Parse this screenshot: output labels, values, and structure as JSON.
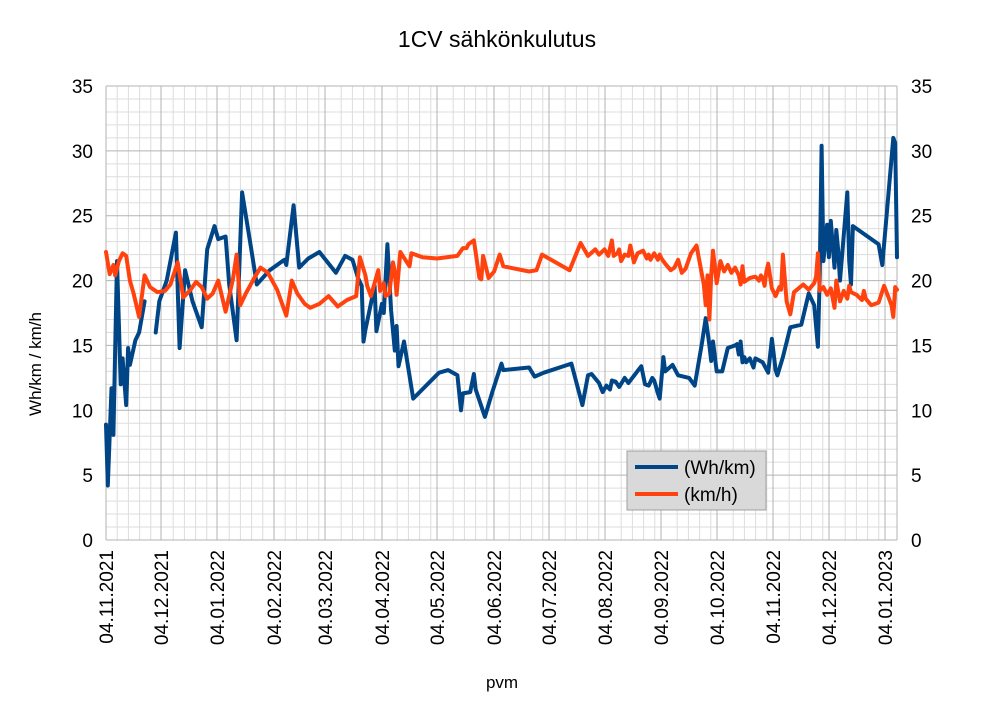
{
  "chart_data": {
    "type": "line",
    "title": "1CV sähkönkulutus",
    "xlabel": "pvm",
    "ylabel": "Wh/km / km/h",
    "ylim": [
      0,
      35
    ],
    "y_ticks": [
      "0",
      "5",
      "10",
      "15",
      "20",
      "25",
      "30",
      "35"
    ],
    "x_ticks": [
      "04.11.2021",
      "04.12.2021",
      "04.01.2022",
      "04.02.2022",
      "04.03.2022",
      "04.04.2022",
      "04.05.2022",
      "04.06.2022",
      "04.07.2022",
      "04.08.2022",
      "04.09.2022",
      "04.10.2022",
      "04.11.2022",
      "04.12.2022",
      "04.01.2023"
    ],
    "x_range_days": [
      0,
      430
    ],
    "legend_position": "right-middle",
    "series": [
      {
        "name": "(Wh/km)",
        "color": "#004586",
        "points": [
          [
            0,
            8.9
          ],
          [
            1,
            4.2
          ],
          [
            3,
            11.7
          ],
          [
            4,
            8.1
          ],
          [
            6,
            21.5
          ],
          [
            8,
            12.0
          ],
          [
            9,
            14.0
          ],
          [
            11,
            10.4
          ],
          [
            12,
            14.8
          ],
          [
            13,
            13.5
          ],
          [
            16,
            15.4
          ],
          [
            18,
            16.0
          ],
          [
            21,
            18.4
          ],
          null,
          [
            27,
            16.0
          ],
          [
            29,
            18.4
          ],
          [
            33,
            20.0
          ],
          [
            38,
            23.7
          ],
          [
            40,
            14.8
          ],
          [
            43,
            20.8
          ],
          [
            47,
            18.4
          ],
          [
            52,
            16.4
          ],
          [
            55,
            22.4
          ],
          [
            59,
            24.2
          ],
          [
            61,
            23.2
          ],
          [
            65,
            23.4
          ],
          [
            67,
            19.7
          ],
          [
            71,
            15.4
          ],
          [
            74,
            26.8
          ],
          [
            79,
            22.4
          ],
          [
            82,
            19.7
          ],
          [
            89,
            20.8
          ],
          [
            97,
            21.6
          ],
          [
            98,
            21.2
          ],
          [
            102,
            25.8
          ],
          [
            105,
            21.0
          ],
          [
            110,
            21.7
          ],
          [
            116,
            22.2
          ],
          [
            125,
            20.6
          ],
          [
            130,
            21.9
          ],
          [
            134,
            21.6
          ],
          [
            137,
            20.2
          ],
          [
            139,
            19.6
          ],
          [
            140,
            15.3
          ],
          [
            141,
            16.2
          ],
          [
            146,
            19.6
          ],
          [
            147,
            16.1
          ],
          [
            150,
            18.2
          ],
          [
            151,
            17.5
          ],
          [
            153,
            22.8
          ],
          [
            155,
            17.7
          ],
          [
            157,
            14.6
          ],
          [
            158,
            16.5
          ],
          [
            159,
            13.4
          ],
          [
            162,
            15.3
          ],
          [
            167,
            10.9
          ],
          [
            181,
            12.9
          ],
          [
            186,
            13.1
          ],
          [
            191,
            12.7
          ],
          [
            193,
            10.0
          ],
          [
            194,
            11.3
          ],
          [
            198,
            11.4
          ],
          [
            200,
            12.8
          ],
          [
            201,
            11.6
          ],
          [
            206,
            9.5
          ],
          [
            210,
            11.4
          ],
          [
            215,
            13.6
          ],
          [
            216,
            13.1
          ],
          [
            230,
            13.3
          ],
          [
            233,
            12.6
          ],
          [
            238,
            12.9
          ],
          [
            253,
            13.6
          ],
          [
            259,
            10.4
          ],
          [
            262,
            12.7
          ],
          [
            264,
            12.8
          ],
          [
            268,
            12.1
          ],
          [
            270,
            11.4
          ],
          [
            272,
            11.9
          ],
          [
            274,
            11.6
          ],
          [
            275,
            12.3
          ],
          [
            277,
            12.2
          ],
          [
            279,
            11.8
          ],
          [
            282,
            12.5
          ],
          [
            284,
            12.1
          ],
          [
            291,
            13.4
          ],
          [
            293,
            12.0
          ],
          [
            295,
            11.9
          ],
          [
            297,
            12.5
          ],
          [
            298,
            12.3
          ],
          [
            300,
            11.3
          ],
          [
            301,
            10.9
          ],
          [
            303,
            14.1
          ],
          [
            304,
            13.0
          ],
          [
            308,
            13.5
          ],
          [
            311,
            12.7
          ],
          [
            317,
            12.5
          ],
          [
            320,
            11.9
          ],
          [
            324,
            15.2
          ],
          [
            326,
            17.1
          ],
          [
            328,
            15.0
          ],
          [
            329,
            13.8
          ],
          [
            330,
            15.3
          ],
          [
            332,
            13.0
          ],
          [
            335,
            13.0
          ],
          [
            338,
            14.8
          ],
          [
            342,
            15.0
          ],
          [
            343,
            15.1
          ],
          [
            344,
            14.3
          ],
          [
            345,
            15.3
          ],
          [
            346,
            13.7
          ],
          [
            347,
            14.1
          ],
          [
            348,
            13.7
          ],
          [
            350,
            14.0
          ],
          [
            352,
            13.3
          ],
          [
            353,
            14.0
          ],
          [
            357,
            13.7
          ],
          [
            360,
            12.9
          ],
          [
            362,
            15.5
          ],
          [
            364,
            13.1
          ],
          [
            365,
            12.7
          ],
          [
            368,
            14.1
          ],
          [
            372,
            16.4
          ],
          [
            378,
            16.6
          ],
          [
            382,
            19.0
          ],
          [
            385,
            18.1
          ],
          [
            387,
            14.9
          ],
          [
            388,
            20.3
          ],
          [
            389,
            30.4
          ],
          [
            390,
            21.5
          ],
          [
            392,
            24.3
          ],
          [
            393,
            21.8
          ],
          [
            394,
            24.6
          ],
          [
            396,
            21.0
          ],
          [
            397,
            23.9
          ],
          [
            398,
            22.4
          ],
          [
            399,
            20.0
          ],
          [
            403,
            26.8
          ],
          [
            404,
            21.5
          ],
          [
            405,
            19.7
          ],
          [
            406,
            24.2
          ],
          [
            420,
            22.8
          ],
          [
            422,
            21.2
          ],
          [
            428,
            31.0
          ],
          [
            429,
            30.6
          ],
          [
            430,
            21.8
          ]
        ]
      },
      {
        "name": "(km/h)",
        "color": "#ff420e",
        "points": [
          [
            0,
            22.2
          ],
          [
            2,
            20.5
          ],
          [
            4,
            21.2
          ],
          [
            5,
            20.4
          ],
          [
            7,
            21.5
          ],
          [
            9,
            22.1
          ],
          [
            11,
            21.9
          ],
          [
            13,
            20.0
          ],
          [
            15,
            19.0
          ],
          [
            18,
            17.2
          ],
          [
            21,
            20.4
          ],
          [
            24,
            19.5
          ],
          [
            28,
            19.1
          ],
          [
            32,
            19.2
          ],
          [
            35,
            19.7
          ],
          [
            39,
            21.4
          ],
          [
            42,
            18.7
          ],
          [
            46,
            19.3
          ],
          [
            49,
            19.9
          ],
          [
            52,
            19.5
          ],
          [
            55,
            18.6
          ],
          [
            58,
            19.0
          ],
          [
            61,
            20.0
          ],
          [
            65,
            17.6
          ],
          [
            69,
            20.1
          ],
          [
            71,
            22.0
          ],
          [
            73,
            18.1
          ],
          [
            76,
            19.0
          ],
          [
            81,
            20.3
          ],
          [
            84,
            21.0
          ],
          [
            88,
            20.6
          ],
          [
            93,
            19.3
          ],
          [
            96,
            18.1
          ],
          [
            98,
            17.3
          ],
          [
            101,
            20.0
          ],
          [
            104,
            19.0
          ],
          [
            108,
            18.2
          ],
          [
            111,
            17.9
          ],
          [
            116,
            18.2
          ],
          [
            121,
            18.8
          ],
          [
            126,
            18.0
          ],
          [
            131,
            18.5
          ],
          [
            136,
            18.8
          ],
          [
            138,
            21.8
          ],
          [
            141,
            20.4
          ],
          [
            142,
            19.6
          ],
          [
            144,
            18.8
          ],
          [
            145,
            19.3
          ],
          [
            148,
            20.8
          ],
          [
            149,
            19.2
          ],
          [
            151,
            19.8
          ],
          [
            152,
            18.8
          ],
          [
            154,
            19.0
          ],
          [
            156,
            21.4
          ],
          [
            157,
            20.7
          ],
          [
            158,
            18.9
          ],
          [
            160,
            22.2
          ],
          [
            165,
            21.1
          ],
          [
            166,
            22.1
          ],
          [
            172,
            21.8
          ],
          [
            180,
            21.7
          ],
          [
            191,
            21.9
          ],
          [
            194,
            22.5
          ],
          [
            196,
            22.5
          ],
          [
            197,
            22.8
          ],
          [
            200,
            23.1
          ],
          [
            203,
            20.2
          ],
          [
            204,
            20.1
          ],
          [
            205,
            21.9
          ],
          [
            208,
            20.2
          ],
          [
            211,
            20.7
          ],
          [
            214,
            22.0
          ],
          [
            216,
            21.1
          ],
          [
            230,
            20.7
          ],
          [
            234,
            20.8
          ],
          [
            237,
            22.0
          ],
          [
            252,
            20.8
          ],
          [
            258,
            22.9
          ],
          [
            262,
            21.9
          ],
          [
            266,
            22.4
          ],
          [
            268,
            22.0
          ],
          [
            271,
            22.4
          ],
          [
            273,
            21.9
          ],
          [
            275,
            23.1
          ],
          [
            276,
            21.9
          ],
          [
            278,
            22.1
          ],
          [
            279,
            22.4
          ],
          [
            280,
            21.5
          ],
          [
            282,
            22.0
          ],
          [
            284,
            21.9
          ],
          [
            285,
            22.7
          ],
          [
            286,
            22.1
          ],
          [
            287,
            21.4
          ],
          [
            289,
            22.1
          ],
          [
            292,
            22.3
          ],
          [
            294,
            21.7
          ],
          [
            295,
            22.0
          ],
          [
            296,
            21.6
          ],
          [
            298,
            22.1
          ],
          [
            300,
            21.6
          ],
          [
            301,
            22.0
          ],
          [
            302,
            21.7
          ],
          [
            304,
            21.3
          ],
          [
            307,
            20.8
          ],
          [
            309,
            21.0
          ],
          [
            311,
            21.6
          ],
          [
            313,
            20.6
          ],
          [
            315,
            20.9
          ],
          [
            318,
            22.1
          ],
          [
            321,
            22.7
          ],
          [
            325,
            19.7
          ],
          [
            326,
            18.1
          ],
          [
            327,
            20.4
          ],
          [
            328,
            17.0
          ],
          [
            329,
            20.4
          ],
          [
            330,
            22.3
          ],
          [
            332,
            19.8
          ],
          [
            334,
            21.5
          ],
          [
            336,
            20.7
          ],
          [
            338,
            21.2
          ],
          [
            340,
            20.6
          ],
          [
            342,
            21.0
          ],
          [
            344,
            20.4
          ],
          [
            345,
            19.7
          ],
          [
            346,
            21.1
          ],
          [
            347,
            19.9
          ],
          [
            350,
            20.2
          ],
          [
            353,
            20.3
          ],
          [
            355,
            20.0
          ],
          [
            356,
            20.4
          ],
          [
            357,
            20.2
          ],
          [
            358,
            19.6
          ],
          [
            359,
            20.7
          ],
          [
            360,
            21.3
          ],
          [
            362,
            19.4
          ],
          [
            364,
            18.8
          ],
          [
            366,
            19.5
          ],
          [
            367,
            19.3
          ],
          [
            368,
            22.0
          ],
          [
            370,
            18.4
          ],
          [
            372,
            17.4
          ],
          [
            374,
            19.1
          ],
          [
            379,
            19.7
          ],
          [
            382,
            19.3
          ],
          [
            385,
            19.8
          ],
          [
            386,
            20.3
          ],
          [
            387,
            22.1
          ],
          [
            388,
            19.2
          ],
          [
            390,
            19.5
          ],
          [
            392,
            18.9
          ],
          [
            394,
            19.4
          ],
          [
            396,
            17.9
          ],
          [
            397,
            20.0
          ],
          [
            399,
            18.4
          ],
          [
            401,
            19.2
          ],
          [
            403,
            18.6
          ],
          [
            404,
            19.6
          ],
          [
            405,
            19.1
          ],
          [
            408,
            18.9
          ],
          [
            411,
            18.5
          ],
          [
            412,
            19.2
          ],
          [
            413,
            18.6
          ],
          [
            416,
            18.1
          ],
          [
            420,
            18.3
          ],
          [
            423,
            19.6
          ],
          [
            427,
            18.1
          ],
          [
            428,
            17.2
          ],
          [
            429,
            19.5
          ],
          [
            430,
            19.3
          ]
        ]
      }
    ]
  },
  "legend": {
    "items": [
      {
        "label": "(Wh/km)",
        "color": "#004586"
      },
      {
        "label": "(km/h)",
        "color": "#ff420e"
      }
    ]
  }
}
